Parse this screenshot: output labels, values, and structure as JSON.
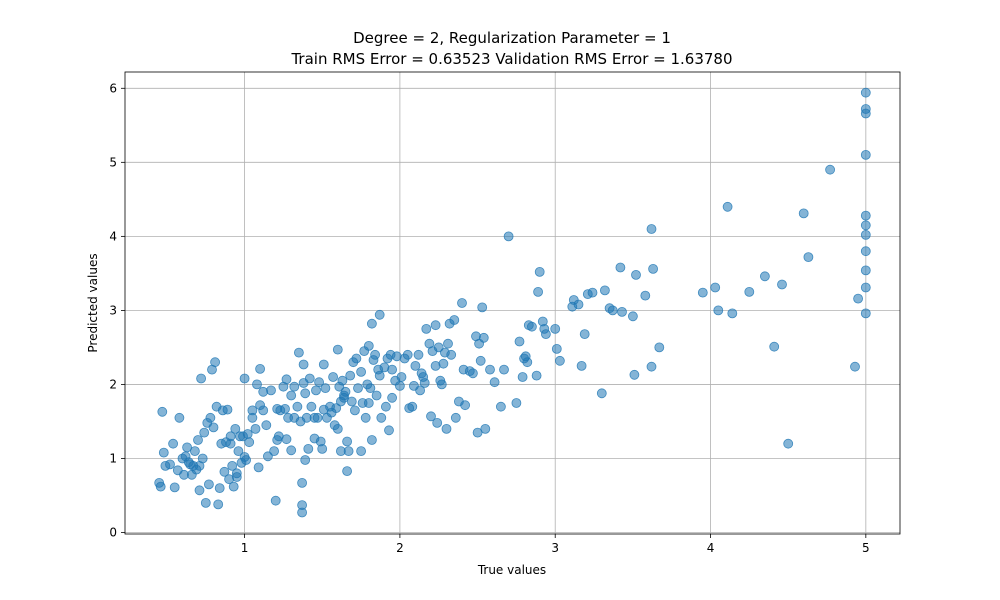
{
  "chart_data": {
    "type": "scatter",
    "title": "Degree = 2, Regularization Parameter = 1",
    "subtitle": "Train RMS Error = 0.63523 Validation RMS Error = 1.63780",
    "xlabel": "True values",
    "ylabel": "Predicted values",
    "xlim": [
      0.23,
      5.22
    ],
    "ylim": [
      -0.02,
      6.22
    ],
    "x_ticks": [
      1,
      2,
      3,
      4,
      5
    ],
    "y_ticks": [
      0,
      1,
      2,
      3,
      4,
      5,
      6
    ],
    "grid": true,
    "point_color": "#1f77b4",
    "point_opacity": 0.55,
    "points": [
      [
        0.45,
        0.67
      ],
      [
        0.46,
        0.62
      ],
      [
        0.47,
        1.63
      ],
      [
        0.48,
        1.08
      ],
      [
        0.49,
        0.9
      ],
      [
        0.52,
        0.92
      ],
      [
        0.54,
        1.2
      ],
      [
        0.55,
        0.61
      ],
      [
        0.57,
        0.84
      ],
      [
        0.58,
        1.55
      ],
      [
        0.6,
        1.0
      ],
      [
        0.61,
        0.78
      ],
      [
        0.62,
        1.03
      ],
      [
        0.63,
        1.15
      ],
      [
        0.64,
        0.95
      ],
      [
        0.65,
        0.92
      ],
      [
        0.66,
        0.78
      ],
      [
        0.67,
        0.9
      ],
      [
        0.68,
        1.1
      ],
      [
        0.69,
        0.85
      ],
      [
        0.7,
        1.25
      ],
      [
        0.71,
        0.9
      ],
      [
        0.71,
        0.57
      ],
      [
        0.72,
        2.08
      ],
      [
        0.73,
        1.0
      ],
      [
        0.74,
        1.35
      ],
      [
        0.75,
        0.4
      ],
      [
        0.76,
        1.48
      ],
      [
        0.77,
        0.65
      ],
      [
        0.78,
        1.55
      ],
      [
        0.79,
        2.2
      ],
      [
        0.8,
        1.42
      ],
      [
        0.81,
        2.3
      ],
      [
        0.82,
        1.7
      ],
      [
        0.83,
        0.38
      ],
      [
        0.84,
        0.6
      ],
      [
        0.85,
        1.2
      ],
      [
        0.86,
        1.65
      ],
      [
        0.87,
        0.82
      ],
      [
        0.88,
        1.22
      ],
      [
        0.89,
        1.66
      ],
      [
        0.9,
        0.72
      ],
      [
        0.91,
        1.3
      ],
      [
        0.91,
        1.2
      ],
      [
        0.92,
        0.9
      ],
      [
        0.93,
        0.62
      ],
      [
        0.94,
        1.4
      ],
      [
        0.95,
        0.75
      ],
      [
        0.95,
        0.8
      ],
      [
        0.96,
        1.1
      ],
      [
        0.97,
        1.3
      ],
      [
        0.98,
        0.94
      ],
      [
        0.99,
        1.3
      ],
      [
        1.0,
        1.02
      ],
      [
        1.0,
        2.08
      ],
      [
        1.01,
        0.98
      ],
      [
        1.02,
        1.33
      ],
      [
        1.03,
        1.22
      ],
      [
        1.05,
        1.55
      ],
      [
        1.05,
        1.65
      ],
      [
        1.07,
        1.4
      ],
      [
        1.08,
        2.0
      ],
      [
        1.09,
        0.88
      ],
      [
        1.1,
        1.72
      ],
      [
        1.1,
        2.21
      ],
      [
        1.12,
        1.65
      ],
      [
        1.12,
        1.9
      ],
      [
        1.14,
        1.45
      ],
      [
        1.15,
        1.03
      ],
      [
        1.17,
        1.92
      ],
      [
        1.19,
        1.1
      ],
      [
        1.2,
        0.43
      ],
      [
        1.21,
        1.25
      ],
      [
        1.21,
        1.67
      ],
      [
        1.22,
        1.3
      ],
      [
        1.23,
        1.65
      ],
      [
        1.25,
        1.97
      ],
      [
        1.26,
        1.67
      ],
      [
        1.27,
        2.07
      ],
      [
        1.27,
        1.26
      ],
      [
        1.28,
        1.55
      ],
      [
        1.3,
        1.11
      ],
      [
        1.3,
        1.85
      ],
      [
        1.32,
        1.97
      ],
      [
        1.32,
        1.55
      ],
      [
        1.34,
        1.7
      ],
      [
        1.35,
        2.43
      ],
      [
        1.36,
        1.5
      ],
      [
        1.37,
        0.67
      ],
      [
        1.37,
        0.37
      ],
      [
        1.37,
        0.27
      ],
      [
        1.38,
        2.02
      ],
      [
        1.38,
        2.27
      ],
      [
        1.39,
        1.88
      ],
      [
        1.39,
        0.98
      ],
      [
        1.4,
        1.55
      ],
      [
        1.41,
        1.13
      ],
      [
        1.42,
        2.08
      ],
      [
        1.43,
        1.7
      ],
      [
        1.45,
        1.55
      ],
      [
        1.45,
        1.27
      ],
      [
        1.46,
        1.92
      ],
      [
        1.47,
        1.55
      ],
      [
        1.48,
        2.03
      ],
      [
        1.49,
        1.23
      ],
      [
        1.5,
        1.13
      ],
      [
        1.51,
        1.66
      ],
      [
        1.51,
        2.27
      ],
      [
        1.52,
        1.95
      ],
      [
        1.53,
        1.55
      ],
      [
        1.55,
        1.7
      ],
      [
        1.56,
        1.62
      ],
      [
        1.57,
        2.1
      ],
      [
        1.58,
        1.45
      ],
      [
        1.59,
        1.68
      ],
      [
        1.6,
        1.4
      ],
      [
        1.6,
        2.47
      ],
      [
        1.61,
        1.97
      ],
      [
        1.62,
        1.77
      ],
      [
        1.62,
        1.1
      ],
      [
        1.63,
        2.05
      ],
      [
        1.64,
        1.85
      ],
      [
        1.64,
        1.82
      ],
      [
        1.65,
        1.9
      ],
      [
        1.66,
        0.83
      ],
      [
        1.66,
        1.23
      ],
      [
        1.67,
        1.1
      ],
      [
        1.68,
        2.12
      ],
      [
        1.69,
        1.77
      ],
      [
        1.7,
        2.3
      ],
      [
        1.71,
        1.65
      ],
      [
        1.72,
        2.35
      ],
      [
        1.73,
        1.95
      ],
      [
        1.75,
        1.1
      ],
      [
        1.75,
        2.17
      ],
      [
        1.76,
        1.75
      ],
      [
        1.77,
        2.45
      ],
      [
        1.78,
        1.55
      ],
      [
        1.79,
        2.0
      ],
      [
        1.8,
        1.75
      ],
      [
        1.8,
        2.52
      ],
      [
        1.81,
        1.95
      ],
      [
        1.82,
        1.25
      ],
      [
        1.82,
        2.82
      ],
      [
        1.83,
        2.33
      ],
      [
        1.84,
        2.4
      ],
      [
        1.85,
        1.85
      ],
      [
        1.86,
        2.2
      ],
      [
        1.87,
        2.94
      ],
      [
        1.87,
        2.12
      ],
      [
        1.88,
        1.55
      ],
      [
        1.9,
        2.23
      ],
      [
        1.91,
        1.7
      ],
      [
        1.92,
        2.35
      ],
      [
        1.93,
        1.38
      ],
      [
        1.94,
        2.4
      ],
      [
        1.95,
        1.82
      ],
      [
        1.95,
        2.2
      ],
      [
        1.97,
        2.05
      ],
      [
        1.98,
        2.38
      ],
      [
        2.0,
        1.98
      ],
      [
        2.01,
        2.1
      ],
      [
        2.03,
        2.35
      ],
      [
        2.05,
        2.4
      ],
      [
        2.06,
        1.68
      ],
      [
        2.08,
        1.7
      ],
      [
        2.09,
        1.98
      ],
      [
        2.1,
        2.25
      ],
      [
        2.12,
        2.4
      ],
      [
        2.13,
        1.92
      ],
      [
        2.14,
        2.15
      ],
      [
        2.15,
        2.1
      ],
      [
        2.16,
        2.02
      ],
      [
        2.17,
        2.75
      ],
      [
        2.19,
        2.55
      ],
      [
        2.2,
        1.57
      ],
      [
        2.21,
        2.45
      ],
      [
        2.23,
        2.8
      ],
      [
        2.23,
        2.25
      ],
      [
        2.24,
        1.48
      ],
      [
        2.25,
        2.5
      ],
      [
        2.26,
        2.05
      ],
      [
        2.27,
        2.0
      ],
      [
        2.28,
        2.28
      ],
      [
        2.29,
        2.43
      ],
      [
        2.3,
        1.4
      ],
      [
        2.31,
        2.55
      ],
      [
        2.32,
        2.82
      ],
      [
        2.33,
        2.4
      ],
      [
        2.35,
        2.87
      ],
      [
        2.36,
        1.55
      ],
      [
        2.38,
        1.77
      ],
      [
        2.4,
        3.1
      ],
      [
        2.41,
        2.2
      ],
      [
        2.42,
        1.72
      ],
      [
        2.45,
        2.18
      ],
      [
        2.47,
        2.15
      ],
      [
        2.49,
        2.65
      ],
      [
        2.5,
        1.35
      ],
      [
        2.51,
        2.55
      ],
      [
        2.52,
        2.32
      ],
      [
        2.53,
        3.04
      ],
      [
        2.54,
        2.63
      ],
      [
        2.55,
        1.4
      ],
      [
        2.58,
        2.2
      ],
      [
        2.61,
        2.03
      ],
      [
        2.65,
        1.7
      ],
      [
        2.67,
        2.2
      ],
      [
        2.7,
        4.0
      ],
      [
        2.75,
        1.75
      ],
      [
        2.77,
        2.58
      ],
      [
        2.79,
        2.1
      ],
      [
        2.8,
        2.35
      ],
      [
        2.81,
        2.38
      ],
      [
        2.82,
        2.3
      ],
      [
        2.83,
        2.8
      ],
      [
        2.85,
        2.78
      ],
      [
        2.88,
        2.12
      ],
      [
        2.89,
        3.25
      ],
      [
        2.9,
        3.52
      ],
      [
        2.92,
        2.85
      ],
      [
        2.93,
        2.75
      ],
      [
        2.94,
        2.68
      ],
      [
        3.0,
        2.75
      ],
      [
        3.01,
        2.48
      ],
      [
        3.03,
        2.32
      ],
      [
        3.11,
        3.05
      ],
      [
        3.12,
        3.14
      ],
      [
        3.15,
        3.08
      ],
      [
        3.17,
        2.25
      ],
      [
        3.19,
        2.68
      ],
      [
        3.21,
        3.22
      ],
      [
        3.24,
        3.24
      ],
      [
        3.3,
        1.88
      ],
      [
        3.32,
        3.27
      ],
      [
        3.35,
        3.03
      ],
      [
        3.37,
        3.0
      ],
      [
        3.42,
        3.58
      ],
      [
        3.43,
        2.98
      ],
      [
        3.5,
        2.92
      ],
      [
        3.51,
        2.13
      ],
      [
        3.52,
        3.48
      ],
      [
        3.58,
        3.2
      ],
      [
        3.62,
        2.24
      ],
      [
        3.62,
        4.1
      ],
      [
        3.63,
        3.56
      ],
      [
        3.67,
        2.5
      ],
      [
        3.95,
        3.24
      ],
      [
        4.03,
        3.31
      ],
      [
        4.05,
        3.0
      ],
      [
        4.11,
        4.4
      ],
      [
        4.14,
        2.96
      ],
      [
        4.25,
        3.25
      ],
      [
        4.35,
        3.46
      ],
      [
        4.41,
        2.51
      ],
      [
        4.46,
        3.35
      ],
      [
        4.5,
        1.2
      ],
      [
        4.6,
        4.31
      ],
      [
        4.63,
        3.72
      ],
      [
        4.77,
        4.9
      ],
      [
        4.93,
        2.24
      ],
      [
        4.95,
        3.16
      ],
      [
        5.0,
        5.94
      ],
      [
        5.0,
        5.72
      ],
      [
        5.0,
        5.66
      ],
      [
        5.0,
        5.1
      ],
      [
        5.0,
        4.28
      ],
      [
        5.0,
        4.15
      ],
      [
        5.0,
        4.02
      ],
      [
        5.0,
        3.8
      ],
      [
        5.0,
        3.54
      ],
      [
        5.0,
        3.31
      ],
      [
        5.0,
        2.96
      ]
    ]
  }
}
